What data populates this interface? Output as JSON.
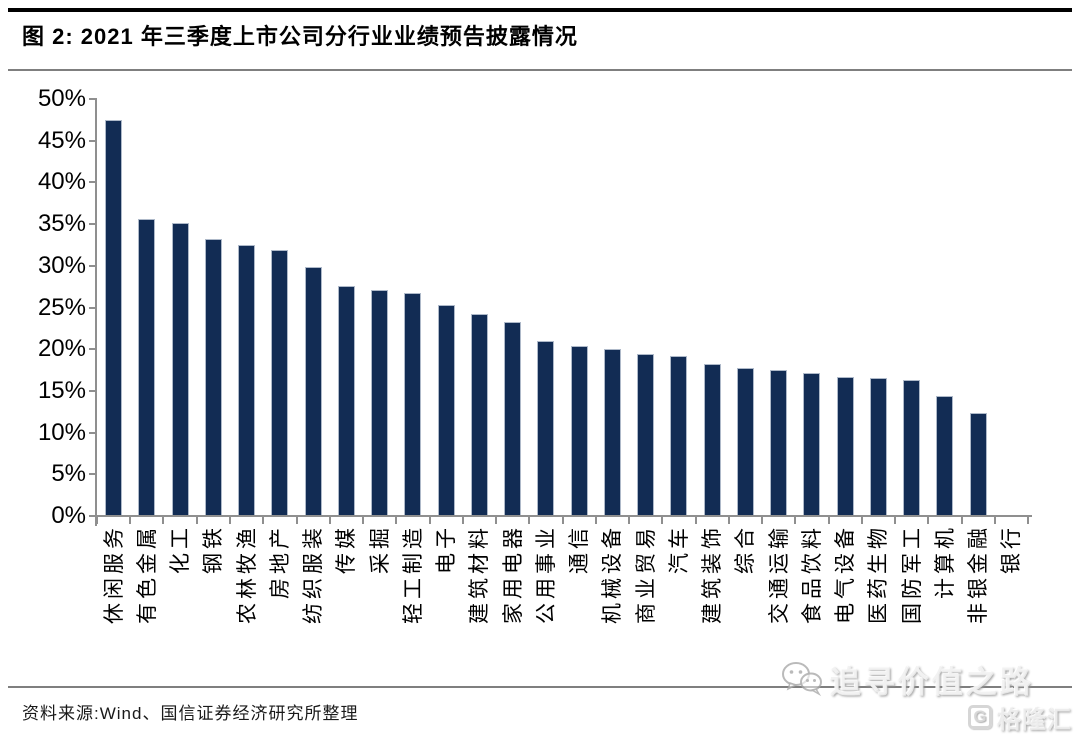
{
  "header": {
    "title": "图 2: 2021 年三季度上市公司分行业业绩预告披露情况"
  },
  "chart_data": {
    "type": "bar",
    "title": "2021 年三季度上市公司分行业业绩预告披露情况",
    "categories": [
      "休闲服务",
      "有色金属",
      "化工",
      "钢铁",
      "农林牧渔",
      "房地产",
      "纺织服装",
      "传媒",
      "采掘",
      "轻工制造",
      "电子",
      "建筑材料",
      "家用电器",
      "公用事业",
      "通信",
      "机械设备",
      "商业贸易",
      "汽车",
      "建筑装饰",
      "综合",
      "交通运输",
      "食品饮料",
      "电气设备",
      "医药生物",
      "国防军工",
      "计算机",
      "非银金融",
      "银行"
    ],
    "values": [
      47.5,
      35.6,
      35.1,
      33.2,
      32.5,
      31.8,
      29.8,
      27.5,
      27.1,
      26.7,
      25.2,
      24.2,
      23.2,
      20.9,
      20.3,
      20.0,
      19.3,
      19.1,
      18.2,
      17.7,
      17.4,
      17.1,
      16.6,
      16.5,
      16.2,
      14.3,
      12.2,
      0.0
    ],
    "unit": "%",
    "xlabel": "",
    "ylabel": "",
    "ylim": [
      0,
      50
    ],
    "ytick_step": 5,
    "ytick_labels_top_down": [
      "50%",
      "45%",
      "40%",
      "35%",
      "30%",
      "25%",
      "20%",
      "15%",
      "10%",
      "5%",
      "0%"
    ],
    "grid": false,
    "legend": null,
    "bar_color": "#122C54",
    "bar_border_color": "#aeb9c9",
    "axis_color": "#8f8f8f"
  },
  "footer": {
    "source": "资料来源:Wind、国信证券经济研究所整理"
  },
  "watermark": {
    "wechat_text": "追寻价值之路",
    "brand_text": "格隆汇",
    "brand_logo_letter": "G"
  }
}
